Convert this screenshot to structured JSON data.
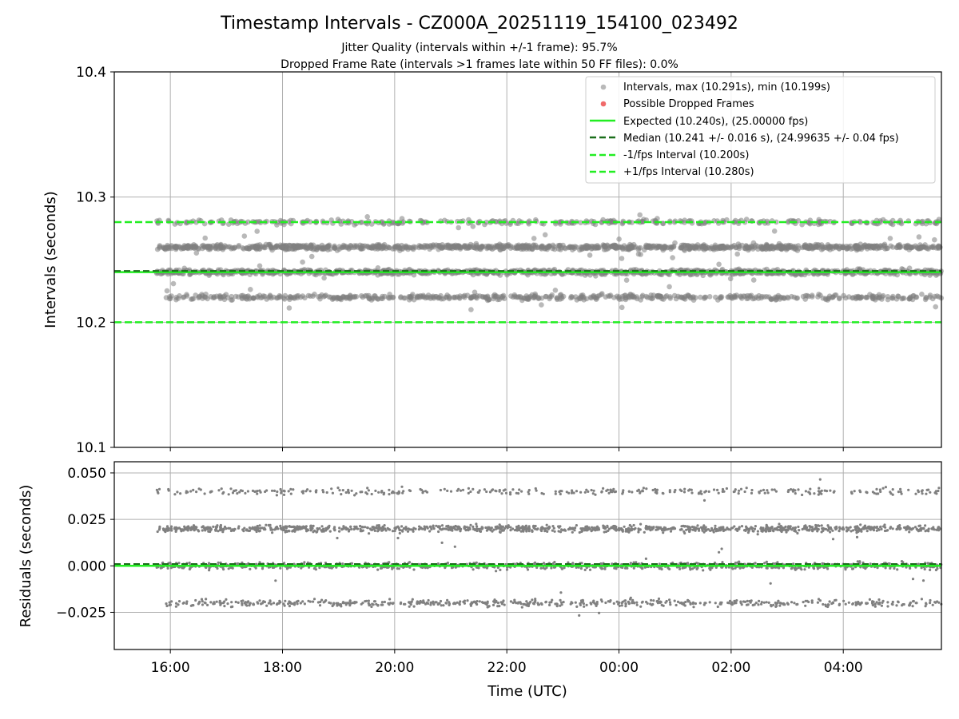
{
  "title": "Timestamp Intervals - CZ000A_20251119_154100_023492",
  "subtitle_jitter": "Jitter Quality (intervals within +/-1 frame): 95.7%",
  "subtitle_dropped": "Dropped Frame Rate (intervals >1 frames late within 50 FF files): 0.0%",
  "colors": {
    "points": "#808080",
    "dropped": "#f06a6a",
    "expected": "#22ee22",
    "median": "#1a6e1a",
    "interval": "#22ee22",
    "grid": "#b0b0b0"
  },
  "chart_data": [
    {
      "type": "scatter",
      "panel": "intervals",
      "ylabel": "Intervals (seconds)",
      "ylim": [
        10.1,
        10.4
      ],
      "yticks": [
        "10.1",
        "10.2",
        "10.3",
        "10.4"
      ],
      "xlim": [
        "15:00",
        "05:45"
      ],
      "xticks": [
        "16:00",
        "18:00",
        "20:00",
        "22:00",
        "00:00",
        "02:00",
        "04:00"
      ],
      "grid": true,
      "legend_position": "top-right",
      "x_range_of_points": [
        "15:45",
        "05:45"
      ],
      "point_bands": [
        10.22,
        10.24,
        10.26,
        10.28
      ],
      "max_interval": 10.291,
      "min_interval": 10.199,
      "series": [
        {
          "name": "Intervals, max (10.291s), min (10.199s)",
          "marker": "circle",
          "color": "#808080"
        },
        {
          "name": "Possible Dropped Frames",
          "marker": "circle",
          "color": "#f06a6a",
          "count": 0
        },
        {
          "name": "Expected (10.240s), (25.00000 fps)",
          "line": "solid",
          "y": 10.24,
          "color": "#22ee22"
        },
        {
          "name": "Median (10.241 +/- 0.016 s), (24.99635 +/- 0.04 fps)",
          "line": "dashed",
          "y": 10.241,
          "color": "#1a6e1a"
        },
        {
          "name": "-1/fps Interval (10.200s)",
          "line": "dashed",
          "y": 10.2,
          "color": "#22ee22"
        },
        {
          "name": "+1/fps Interval (10.280s)",
          "line": "dashed",
          "y": 10.28,
          "color": "#22ee22"
        }
      ]
    },
    {
      "type": "scatter",
      "panel": "residuals",
      "xlabel": "Time (UTC)",
      "ylabel": "Residuals (seconds)",
      "ylim": [
        -0.045,
        0.056
      ],
      "yticks": [
        "−0.025",
        "0.000",
        "0.025",
        "0.050"
      ],
      "xlim": [
        "15:00",
        "05:45"
      ],
      "xticks": [
        "16:00",
        "18:00",
        "20:00",
        "22:00",
        "00:00",
        "02:00",
        "04:00"
      ],
      "grid": true,
      "point_bands": [
        -0.02,
        0.0,
        0.02,
        0.04
      ],
      "zero_line": 0.0,
      "median_offset": 0.001
    }
  ]
}
